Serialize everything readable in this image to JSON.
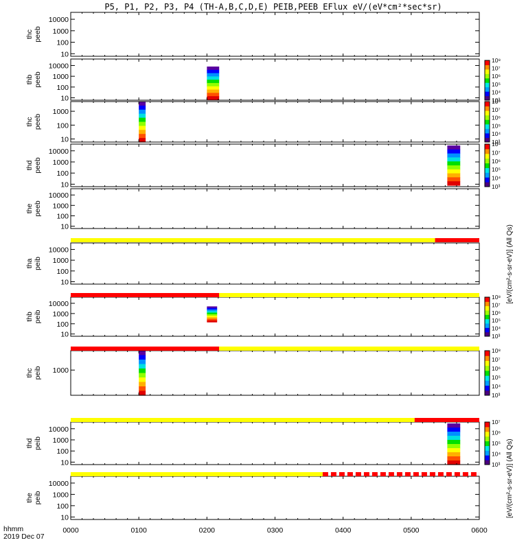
{
  "figure": {
    "title": "P5, P1, P2, P3, P4 (TH-A,B,C,D,E) PEIB,PEEB EFlux eV/(eV*cm²*sec*sr)",
    "time_label": "hhmm",
    "date_label": "2019 Dec 07",
    "electron_colorbar_title": "[eV/(cm²-s-sr-eV)] (All Qs)",
    "ion_colorbar_title": "[eV/(cm²-s-sr-eV)] (All Qs)"
  },
  "chart_data": {
    "type": "heatmap",
    "x_axis": {
      "ticks": [
        "0000",
        "0100",
        "0200",
        "0300",
        "0400",
        "0500",
        "0600"
      ],
      "range_hours": [
        0,
        6
      ]
    },
    "y_scale": "log",
    "panels": [
      {
        "probe": "thc",
        "product": "peeb",
        "yticks": [
          "10",
          "100",
          "1000",
          "10000"
        ],
        "ylim": [
          6,
          40000
        ],
        "spectra": [],
        "colorbar": null
      },
      {
        "probe": "thb",
        "product": "peeb",
        "yticks": [
          "10",
          "100",
          "1000",
          "10000"
        ],
        "ylim": [
          6,
          40000
        ],
        "spectra": [
          {
            "t_start": 2.0,
            "t_end": 2.18,
            "e_min": 7,
            "e_max": 8000
          }
        ],
        "colorbar": {
          "ticks": [
            "10³",
            "10⁴",
            "10⁵",
            "10⁶",
            "10⁷",
            "10⁸"
          ]
        }
      },
      {
        "probe": "thc",
        "product": "peeb",
        "yticks": [
          "10",
          "100",
          "1000"
        ],
        "ylim": [
          6,
          5000
        ],
        "spectra": [
          {
            "t_start": 1.0,
            "t_end": 1.1,
            "e_min": 6,
            "e_max": 5000
          }
        ],
        "colorbar": {
          "ticks": [
            "10³",
            "10⁴",
            "10⁵",
            "10⁶",
            "10⁷",
            "10⁸"
          ]
        }
      },
      {
        "probe": "thd",
        "product": "peeb",
        "yticks": [
          "10",
          "100",
          "1000",
          "10000"
        ],
        "ylim": [
          6,
          40000
        ],
        "spectra": [
          {
            "t_start": 5.53,
            "t_end": 5.72,
            "e_min": 8,
            "e_max": 30000
          }
        ],
        "colorbar": {
          "ticks": [
            "10³",
            "10⁴",
            "10⁵",
            "10⁶",
            "10⁷",
            "10⁸"
          ]
        }
      },
      {
        "probe": "the",
        "product": "peeb",
        "yticks": [
          "10",
          "100",
          "1000",
          "10000"
        ],
        "ylim": [
          6,
          40000
        ],
        "spectra": [],
        "colorbar": null
      },
      {
        "probe": "tha",
        "product": "peib",
        "yticks": [
          "10",
          "100",
          "1000",
          "10000"
        ],
        "ylim": [
          6,
          40000
        ],
        "spectra": [],
        "colorbar": null
      },
      {
        "probe": "thb",
        "product": "peib",
        "yticks": [
          "10",
          "100",
          "1000",
          "10000"
        ],
        "ylim": [
          6,
          40000
        ],
        "spectra": [
          {
            "t_start": 2.0,
            "t_end": 2.15,
            "e_min": 150,
            "e_max": 5000
          }
        ],
        "colorbar": {
          "ticks": [
            "10³",
            "10⁴",
            "10⁵",
            "10⁶",
            "10⁷",
            "10⁸"
          ]
        }
      },
      {
        "probe": "thc",
        "product": "peib",
        "yticks": [
          "1000"
        ],
        "ylim": [
          50,
          10000
        ],
        "spectra": [
          {
            "t_start": 1.0,
            "t_end": 1.1,
            "e_min": 50,
            "e_max": 10000
          }
        ],
        "colorbar": {
          "ticks": [
            "10³",
            "10⁴",
            "10⁵",
            "10⁶",
            "10⁷",
            "10⁸"
          ]
        }
      },
      {
        "probe": "thd",
        "product": "peib",
        "yticks": [
          "10",
          "100",
          "1000",
          "10000"
        ],
        "ylim": [
          6,
          40000
        ],
        "spectra": [
          {
            "t_start": 5.53,
            "t_end": 5.72,
            "e_min": 6,
            "e_max": 30000
          }
        ],
        "colorbar": {
          "ticks": [
            "10³",
            "10⁴",
            "10⁵",
            "10⁶",
            "10⁷"
          ]
        }
      },
      {
        "probe": "the",
        "product": "peib",
        "yticks": [
          "10",
          "100",
          "1000",
          "10000"
        ],
        "ylim": [
          6,
          40000
        ],
        "spectra": [],
        "colorbar": null
      }
    ],
    "mode_bars": [
      {
        "after_panel": 4,
        "segments": [
          {
            "color": "#ffff00",
            "t_start": 0,
            "t_end": 5.35
          },
          {
            "color": "#ff0000",
            "t_start": 5.35,
            "t_end": 6
          }
        ]
      },
      {
        "after_panel": 5,
        "segments": [
          {
            "color": "#ff0000",
            "t_start": 0,
            "t_end": 2.18
          },
          {
            "color": "#ffff00",
            "t_start": 2.18,
            "t_end": 6
          }
        ]
      },
      {
        "after_panel": 6,
        "segments": [
          {
            "color": "#ff0000",
            "t_start": 0,
            "t_end": 2.18
          },
          {
            "color": "#ffff00",
            "t_start": 2.18,
            "t_end": 6
          }
        ]
      },
      {
        "after_panel": 7,
        "segments": [
          {
            "color": "#ffff00",
            "t_start": 0,
            "t_end": 5.05
          },
          {
            "color": "#ff0000",
            "t_start": 5.05,
            "t_end": 6
          }
        ]
      },
      {
        "after_panel": 8,
        "segments": [
          {
            "color": "#ffff00",
            "t_start": 0,
            "t_end": 3.7
          },
          {
            "color": "#ff0000",
            "t_start": 3.7,
            "t_end": 6,
            "dashed": true
          }
        ]
      }
    ]
  }
}
